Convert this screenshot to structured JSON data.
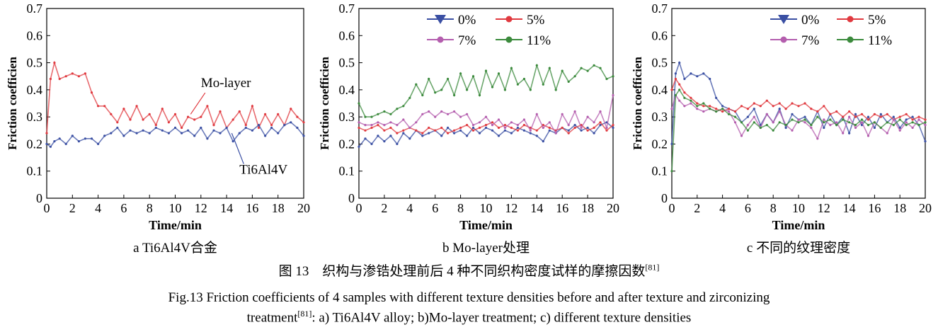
{
  "chart_data": [
    {
      "type": "line",
      "xlabel": "Time/min",
      "ylabel": "Friction coefficien",
      "xlim": [
        0,
        20
      ],
      "ylim": [
        0,
        0.7
      ],
      "xticks": [
        "0",
        "2",
        "4",
        "6",
        "8",
        "10",
        "12",
        "14",
        "16",
        "18",
        "20"
      ],
      "yticks": [
        "0",
        "0.1",
        "0.2",
        "0.3",
        "0.4",
        "0.5",
        "0.6",
        "0.7"
      ],
      "subcaption": "a  Ti6Al4V合金",
      "legend": [],
      "annotations": [
        {
          "text": "Mo-layer",
          "series": "Mo-layer",
          "at": [
            11.2,
            0.31
          ],
          "label_at": [
            12,
            0.41
          ]
        },
        {
          "text": "Ti6Al4V",
          "series": "Ti6Al4V",
          "at": [
            14.4,
            0.24
          ],
          "label_at": [
            15,
            0.09
          ]
        }
      ],
      "series": [
        {
          "name": "Mo-layer",
          "color": "#e0393f",
          "x": [
            0,
            0.3,
            0.6,
            1,
            1.5,
            2,
            2.5,
            3,
            3.5,
            4,
            4.5,
            5,
            5.5,
            6,
            6.5,
            7,
            7.5,
            8,
            8.5,
            9,
            9.5,
            10,
            10.5,
            11,
            11.5,
            12,
            12.5,
            13,
            13.5,
            14,
            14.5,
            15,
            15.5,
            16,
            16.5,
            17,
            17.5,
            18,
            18.5,
            19,
            19.5,
            20
          ],
          "values": [
            0.24,
            0.44,
            0.5,
            0.44,
            0.45,
            0.46,
            0.45,
            0.46,
            0.39,
            0.34,
            0.34,
            0.31,
            0.28,
            0.33,
            0.29,
            0.34,
            0.29,
            0.31,
            0.27,
            0.33,
            0.28,
            0.31,
            0.26,
            0.3,
            0.29,
            0.3,
            0.34,
            0.27,
            0.32,
            0.26,
            0.29,
            0.32,
            0.27,
            0.34,
            0.26,
            0.31,
            0.27,
            0.31,
            0.27,
            0.33,
            0.3,
            0.28
          ]
        },
        {
          "name": "Ti6Al4V",
          "color": "#3a4fa3",
          "x": [
            0,
            0.3,
            0.6,
            1,
            1.5,
            2,
            2.5,
            3,
            3.5,
            4,
            4.5,
            5,
            5.5,
            6,
            6.5,
            7,
            7.5,
            8,
            8.5,
            9,
            9.5,
            10,
            10.5,
            11,
            11.5,
            12,
            12.5,
            13,
            13.5,
            14,
            14.5,
            15,
            15.5,
            16,
            16.5,
            17,
            17.5,
            18,
            18.5,
            19,
            19.5,
            20
          ],
          "values": [
            0.2,
            0.19,
            0.21,
            0.22,
            0.2,
            0.23,
            0.21,
            0.22,
            0.22,
            0.2,
            0.23,
            0.24,
            0.26,
            0.23,
            0.25,
            0.24,
            0.25,
            0.24,
            0.26,
            0.25,
            0.24,
            0.26,
            0.24,
            0.25,
            0.23,
            0.26,
            0.22,
            0.25,
            0.24,
            0.26,
            0.21,
            0.24,
            0.26,
            0.25,
            0.27,
            0.23,
            0.26,
            0.24,
            0.27,
            0.28,
            0.26,
            0.23
          ]
        }
      ]
    },
    {
      "type": "line",
      "xlabel": "Time/min",
      "ylabel": "Friction coefficien",
      "xlim": [
        0,
        20
      ],
      "ylim": [
        0,
        0.7
      ],
      "xticks": [
        "0",
        "2",
        "4",
        "6",
        "8",
        "10",
        "12",
        "14",
        "16",
        "18",
        "20"
      ],
      "yticks": [
        "0",
        "0.1",
        "0.2",
        "0.3",
        "0.4",
        "0.5",
        "0.6",
        "0.7"
      ],
      "subcaption": "b  Mo-layer处理",
      "legend": [
        "0%",
        "5%",
        "7%",
        "11%"
      ],
      "series": [
        {
          "name": "0%",
          "color": "#3a4fa3",
          "marker": "triangle",
          "x": [
            0,
            0.5,
            1,
            1.5,
            2,
            2.5,
            3,
            3.5,
            4,
            4.5,
            5,
            5.5,
            6,
            6.5,
            7,
            7.5,
            8,
            8.5,
            9,
            9.5,
            10,
            10.5,
            11,
            11.5,
            12,
            12.5,
            13,
            13.5,
            14,
            14.5,
            15,
            15.5,
            16,
            16.5,
            17,
            17.5,
            18,
            18.5,
            19,
            19.5,
            20
          ],
          "values": [
            0.19,
            0.22,
            0.2,
            0.23,
            0.21,
            0.23,
            0.2,
            0.24,
            0.22,
            0.25,
            0.23,
            0.24,
            0.25,
            0.23,
            0.26,
            0.24,
            0.25,
            0.23,
            0.26,
            0.24,
            0.26,
            0.25,
            0.23,
            0.25,
            0.24,
            0.26,
            0.25,
            0.24,
            0.23,
            0.21,
            0.25,
            0.24,
            0.26,
            0.25,
            0.27,
            0.25,
            0.26,
            0.24,
            0.27,
            0.28,
            0.26
          ]
        },
        {
          "name": "5%",
          "color": "#e0393f",
          "marker": "circle",
          "x": [
            0,
            0.5,
            1,
            1.5,
            2,
            2.5,
            3,
            3.5,
            4,
            4.5,
            5,
            5.5,
            6,
            6.5,
            7,
            7.5,
            8,
            8.5,
            9,
            9.5,
            10,
            10.5,
            11,
            11.5,
            12,
            12.5,
            13,
            13.5,
            14,
            14.5,
            15,
            15.5,
            16,
            16.5,
            17,
            17.5,
            18,
            18.5,
            19,
            19.5,
            20
          ],
          "values": [
            0.26,
            0.25,
            0.26,
            0.27,
            0.25,
            0.26,
            0.24,
            0.25,
            0.26,
            0.25,
            0.24,
            0.26,
            0.25,
            0.26,
            0.24,
            0.25,
            0.26,
            0.27,
            0.25,
            0.26,
            0.27,
            0.28,
            0.26,
            0.27,
            0.26,
            0.25,
            0.27,
            0.26,
            0.25,
            0.27,
            0.26,
            0.25,
            0.26,
            0.24,
            0.26,
            0.27,
            0.25,
            0.26,
            0.28,
            0.25,
            0.27
          ]
        },
        {
          "name": "7%",
          "color": "#b45eae",
          "marker": "circle",
          "x": [
            0,
            0.5,
            1,
            1.5,
            2,
            2.5,
            3,
            3.5,
            4,
            4.5,
            5,
            5.5,
            6,
            6.5,
            7,
            7.5,
            8,
            8.5,
            9,
            9.5,
            10,
            10.5,
            11,
            11.5,
            12,
            12.5,
            13,
            13.5,
            14,
            14.5,
            15,
            15.5,
            16,
            16.5,
            17,
            17.5,
            18,
            18.5,
            19,
            19.5,
            20
          ],
          "values": [
            0.28,
            0.27,
            0.27,
            0.28,
            0.27,
            0.28,
            0.27,
            0.29,
            0.26,
            0.28,
            0.31,
            0.32,
            0.3,
            0.32,
            0.31,
            0.32,
            0.3,
            0.31,
            0.27,
            0.28,
            0.3,
            0.27,
            0.29,
            0.26,
            0.28,
            0.27,
            0.29,
            0.25,
            0.31,
            0.26,
            0.28,
            0.24,
            0.31,
            0.27,
            0.32,
            0.26,
            0.3,
            0.28,
            0.32,
            0.26,
            0.38
          ]
        },
        {
          "name": "11%",
          "color": "#3b8a3c",
          "marker": "circle",
          "x": [
            0,
            0.5,
            1,
            1.5,
            2,
            2.5,
            3,
            3.5,
            4,
            4.5,
            5,
            5.5,
            6,
            6.5,
            7,
            7.5,
            8,
            8.5,
            9,
            9.5,
            10,
            10.5,
            11,
            11.5,
            12,
            12.5,
            13,
            13.5,
            14,
            14.5,
            15,
            15.5,
            16,
            16.5,
            17,
            17.5,
            18,
            18.5,
            19,
            19.5,
            20
          ],
          "values": [
            0.35,
            0.3,
            0.3,
            0.31,
            0.32,
            0.31,
            0.33,
            0.34,
            0.37,
            0.42,
            0.38,
            0.44,
            0.39,
            0.4,
            0.44,
            0.38,
            0.46,
            0.4,
            0.45,
            0.38,
            0.47,
            0.41,
            0.46,
            0.4,
            0.48,
            0.42,
            0.44,
            0.4,
            0.49,
            0.42,
            0.48,
            0.4,
            0.47,
            0.43,
            0.45,
            0.48,
            0.47,
            0.49,
            0.48,
            0.44,
            0.45
          ]
        }
      ]
    },
    {
      "type": "line",
      "xlabel": "Time/min",
      "ylabel": "Friction coefficien",
      "xlim": [
        0,
        20
      ],
      "ylim": [
        0,
        0.7
      ],
      "xticks": [
        "0",
        "2",
        "4",
        "6",
        "8",
        "10",
        "12",
        "14",
        "16",
        "18",
        "20"
      ],
      "yticks": [
        "0",
        "0.1",
        "0.2",
        "0.3",
        "0.4",
        "0.5",
        "0.6",
        "0.7"
      ],
      "subcaption": "c  不同的纹理密度",
      "legend": [
        "0%",
        "5%",
        "7%",
        "11%"
      ],
      "series": [
        {
          "name": "0%",
          "color": "#3a4fa3",
          "marker": "triangle",
          "x": [
            0,
            0.3,
            0.6,
            1,
            1.5,
            2,
            2.5,
            3,
            3.5,
            4,
            4.5,
            5,
            5.5,
            6,
            6.5,
            7,
            7.5,
            8,
            8.5,
            9,
            9.5,
            10,
            10.5,
            11,
            11.5,
            12,
            12.5,
            13,
            13.5,
            14,
            14.5,
            15,
            15.5,
            16,
            16.5,
            17,
            17.5,
            18,
            18.5,
            19,
            19.5,
            20
          ],
          "values": [
            0.2,
            0.46,
            0.5,
            0.44,
            0.46,
            0.45,
            0.46,
            0.44,
            0.37,
            0.34,
            0.33,
            0.32,
            0.28,
            0.3,
            0.33,
            0.27,
            0.31,
            0.28,
            0.33,
            0.26,
            0.31,
            0.29,
            0.3,
            0.27,
            0.32,
            0.26,
            0.31,
            0.27,
            0.3,
            0.24,
            0.31,
            0.27,
            0.3,
            0.26,
            0.31,
            0.28,
            0.3,
            0.26,
            0.29,
            0.3,
            0.27,
            0.21
          ]
        },
        {
          "name": "5%",
          "color": "#e0393f",
          "marker": "circle",
          "x": [
            0,
            0.3,
            0.6,
            1,
            1.5,
            2,
            2.5,
            3,
            3.5,
            4,
            4.5,
            5,
            5.5,
            6,
            6.5,
            7,
            7.5,
            8,
            8.5,
            9,
            9.5,
            10,
            10.5,
            11,
            11.5,
            12,
            12.5,
            13,
            13.5,
            14,
            14.5,
            15,
            15.5,
            16,
            16.5,
            17,
            17.5,
            18,
            18.5,
            19,
            19.5,
            20
          ],
          "values": [
            0.4,
            0.44,
            0.42,
            0.39,
            0.37,
            0.35,
            0.34,
            0.34,
            0.33,
            0.32,
            0.33,
            0.32,
            0.34,
            0.33,
            0.35,
            0.34,
            0.36,
            0.34,
            0.35,
            0.33,
            0.35,
            0.34,
            0.35,
            0.33,
            0.32,
            0.34,
            0.31,
            0.32,
            0.3,
            0.32,
            0.3,
            0.31,
            0.29,
            0.31,
            0.3,
            0.31,
            0.29,
            0.3,
            0.31,
            0.29,
            0.3,
            0.29
          ]
        },
        {
          "name": "7%",
          "color": "#b45eae",
          "marker": "circle",
          "x": [
            0,
            0.3,
            0.6,
            1,
            1.5,
            2,
            2.5,
            3,
            3.5,
            4,
            4.5,
            5,
            5.5,
            6,
            6.5,
            7,
            7.5,
            8,
            8.5,
            9,
            9.5,
            10,
            10.5,
            11,
            11.5,
            12,
            12.5,
            13,
            13.5,
            14,
            14.5,
            15,
            15.5,
            16,
            16.5,
            17,
            17.5,
            18,
            18.5,
            19,
            19.5,
            20
          ],
          "values": [
            0.33,
            0.38,
            0.36,
            0.34,
            0.35,
            0.33,
            0.32,
            0.33,
            0.32,
            0.33,
            0.32,
            0.28,
            0.23,
            0.27,
            0.3,
            0.26,
            0.31,
            0.28,
            0.32,
            0.27,
            0.25,
            0.29,
            0.28,
            0.26,
            0.22,
            0.29,
            0.27,
            0.28,
            0.24,
            0.3,
            0.26,
            0.28,
            0.23,
            0.28,
            0.26,
            0.24,
            0.29,
            0.25,
            0.28,
            0.26,
            0.29,
            0.27
          ]
        },
        {
          "name": "11%",
          "color": "#3b8a3c",
          "marker": "circle",
          "x": [
            0,
            0.3,
            0.6,
            1,
            1.5,
            2,
            2.5,
            3,
            3.5,
            4,
            4.5,
            5,
            5.5,
            6,
            6.5,
            7,
            7.5,
            8,
            8.5,
            9,
            9.5,
            10,
            10.5,
            11,
            11.5,
            12,
            12.5,
            13,
            13.5,
            14,
            14.5,
            15,
            15.5,
            16,
            16.5,
            17,
            17.5,
            18,
            18.5,
            19,
            19.5,
            20
          ],
          "values": [
            0.1,
            0.38,
            0.4,
            0.37,
            0.36,
            0.34,
            0.35,
            0.33,
            0.32,
            0.33,
            0.31,
            0.3,
            0.28,
            0.25,
            0.28,
            0.26,
            0.27,
            0.25,
            0.28,
            0.27,
            0.29,
            0.28,
            0.29,
            0.27,
            0.3,
            0.28,
            0.29,
            0.27,
            0.29,
            0.28,
            0.27,
            0.29,
            0.27,
            0.28,
            0.26,
            0.28,
            0.27,
            0.29,
            0.27,
            0.28,
            0.27,
            0.28
          ]
        }
      ]
    }
  ],
  "caption": {
    "cn_main": "图 13　织构与渗锆处理前后 4 种不同织构密度试样的摩擦因数",
    "cn_ref": "[81]",
    "en_line1": "Fig.13 Friction coefficients of 4 samples with different texture densities before and after texture and zirconizing",
    "en_line2_pre": "treatment",
    "en_ref": "[81]",
    "en_line2_post": ": a) Ti6Al4V alloy; b)Mo-layer treatment; c) different texture densities"
  }
}
